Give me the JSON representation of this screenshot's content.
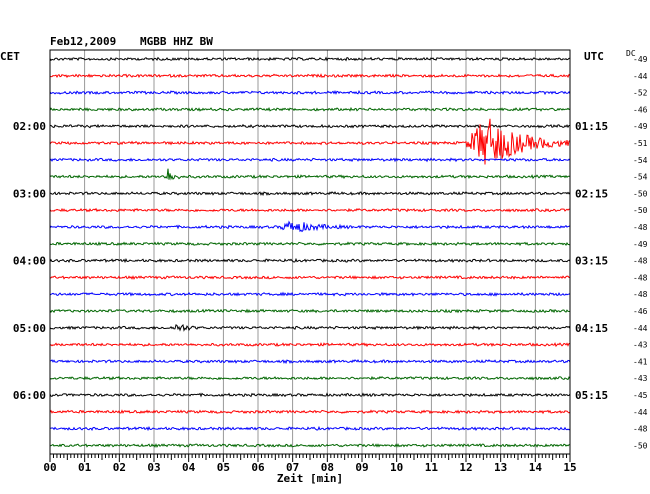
{
  "header": {
    "date": "Feb12,2009",
    "station": "MGBB HHZ BW",
    "left_zone": "CET",
    "right_zone": "UTC",
    "dc_label": "DC"
  },
  "colors": {
    "trace_cycle": [
      "#000000",
      "#ff0000",
      "#0000ff",
      "#006600"
    ],
    "grid": "#808080",
    "background": "#ffffff"
  },
  "chart_data": {
    "type": "line",
    "title": "Feb12,2009   MGBB HHZ BW",
    "xlabel": "Zeit [min]",
    "ylabel": "",
    "xlim": [
      0,
      15
    ],
    "x_ticks": [
      "00",
      "01",
      "02",
      "03",
      "04",
      "05",
      "06",
      "07",
      "08",
      "09",
      "10",
      "11",
      "12",
      "13",
      "14",
      "15"
    ],
    "row_minutes": 15,
    "rows_count": 24,
    "left_time_labels": [
      {
        "row": 4,
        "label": "02:00"
      },
      {
        "row": 8,
        "label": "03:00"
      },
      {
        "row": 12,
        "label": "04:00"
      },
      {
        "row": 16,
        "label": "05:00"
      },
      {
        "row": 20,
        "label": "06:00"
      }
    ],
    "right_time_labels": [
      {
        "row": 4,
        "label": "01:15"
      },
      {
        "row": 8,
        "label": "02:15"
      },
      {
        "row": 12,
        "label": "03:15"
      },
      {
        "row": 16,
        "label": "04:15"
      },
      {
        "row": 20,
        "label": "05:15"
      }
    ],
    "dc_offsets": [
      "-49",
      "-44",
      "-52",
      "-46",
      "-49",
      "-51",
      "-54",
      "-54",
      "-50",
      "-50",
      "-48",
      "-49",
      "-48",
      "-48",
      "-48",
      "-46",
      "-44",
      "-43",
      "-41",
      "-43",
      "-45",
      "-44",
      "-48",
      "-50"
    ],
    "events": [
      {
        "row": 5,
        "minute": 12.6,
        "amplitude": 26,
        "duration": 2.6
      },
      {
        "row": 7,
        "minute": 3.4,
        "amplitude": 9,
        "duration": 0.4
      },
      {
        "row": 10,
        "minute": 7.0,
        "amplitude": 6,
        "duration": 1.6
      },
      {
        "row": 16,
        "minute": 3.7,
        "amplitude": 5,
        "duration": 0.6
      }
    ],
    "grid": true,
    "legend": "none"
  }
}
